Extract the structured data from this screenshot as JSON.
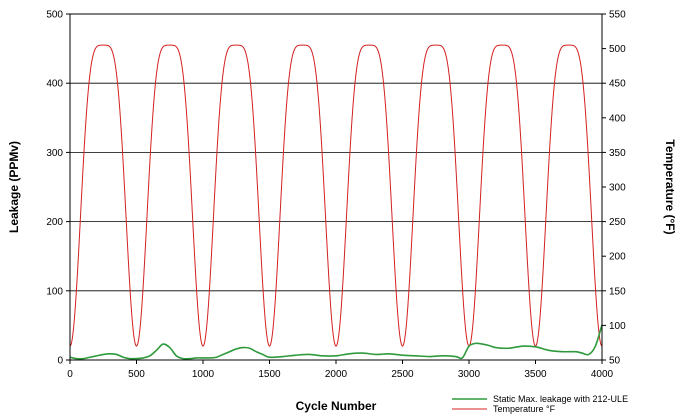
{
  "chart_data": {
    "type": "line",
    "title": "",
    "xlabel": "Cycle Number",
    "ylabel": "Leakage (PPMv)",
    "y2label": "Temperature (°F)",
    "xlim": [
      0,
      4000
    ],
    "ylim": [
      0,
      500
    ],
    "y2lim": [
      50,
      550
    ],
    "x_ticks": [
      0,
      500,
      1000,
      1500,
      2000,
      2500,
      3000,
      3500,
      4000
    ],
    "y_ticks": [
      0,
      100,
      200,
      300,
      400,
      500
    ],
    "y2_ticks": [
      50,
      100,
      150,
      200,
      250,
      300,
      350,
      400,
      450,
      500,
      550
    ],
    "grid": "horizontal",
    "legend_position": "bottom-right",
    "colors": {
      "leakage": "#2e9a3c",
      "temperature": "#d42020",
      "grid": "#000000"
    },
    "series": [
      {
        "name": "Static Max. leakage with 212-ULE",
        "axis": "left",
        "x": [
          0,
          50,
          100,
          150,
          200,
          250,
          300,
          350,
          400,
          450,
          500,
          550,
          600,
          650,
          700,
          750,
          800,
          850,
          900,
          950,
          1000,
          1050,
          1100,
          1150,
          1200,
          1250,
          1300,
          1350,
          1400,
          1450,
          1500,
          1600,
          1700,
          1800,
          1900,
          2000,
          2100,
          2200,
          2300,
          2400,
          2500,
          2600,
          2700,
          2800,
          2900,
          2950,
          3000,
          3050,
          3100,
          3150,
          3200,
          3300,
          3400,
          3500,
          3600,
          3700,
          3800,
          3850,
          3900,
          3950,
          4000
        ],
        "values": [
          4,
          2,
          2,
          4,
          6,
          8,
          9,
          8,
          4,
          2,
          2,
          3,
          6,
          14,
          23,
          18,
          6,
          2,
          2,
          3,
          3,
          3,
          4,
          8,
          12,
          16,
          18,
          17,
          12,
          8,
          4,
          5,
          7,
          8,
          6,
          6,
          9,
          10,
          8,
          9,
          7,
          6,
          5,
          6,
          5,
          3,
          20,
          24,
          23,
          21,
          18,
          17,
          20,
          19,
          14,
          12,
          12,
          10,
          8,
          20,
          51
        ]
      },
      {
        "name": "Temperature °F",
        "axis": "right",
        "waveform": "raised-cosine",
        "period_cycles": 500,
        "min": 70,
        "max": 505,
        "plateau_center_cycles": [
          250,
          750,
          1250,
          1750,
          2250,
          2750,
          3250,
          3750
        ],
        "trough_cycles": [
          500,
          1000,
          1500,
          2000,
          2500,
          3000,
          3500,
          4000
        ]
      }
    ]
  }
}
